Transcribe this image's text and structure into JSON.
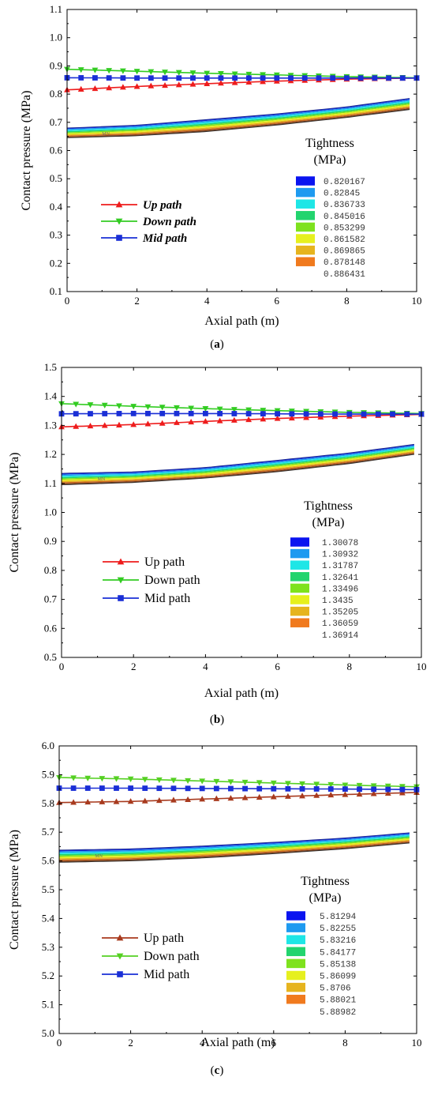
{
  "figure": {
    "panels": [
      {
        "caption_letter": "a",
        "chart_data": {
          "type": "line",
          "xlabel": "Axial path (m)",
          "ylabel": "Contact pressure (MPa)",
          "xlim": [
            0,
            10
          ],
          "ylim": [
            0.1,
            1.1
          ],
          "xticks": [
            0,
            2,
            4,
            6,
            8,
            10
          ],
          "yticks": [
            0.1,
            0.2,
            0.3,
            0.4,
            0.5,
            0.6,
            0.7,
            0.8,
            0.9,
            1.0,
            1.1
          ],
          "ytick_labels": [
            "0.1",
            "0.2",
            "0.3",
            "0.4",
            "0.5",
            "0.6",
            "0.7",
            "0.8",
            "0.9",
            "1.0",
            "1.1"
          ],
          "grid": false,
          "legend_style": "bold-italic",
          "legend_position": "middle-left",
          "series": [
            {
              "name": "Up path",
              "color": "#ee1c1c",
              "marker": "triangle-up",
              "x": [
                0,
                2,
                4,
                6,
                8,
                10
              ],
              "y": [
                0.815,
                0.827,
                0.837,
                0.846,
                0.853,
                0.857
              ]
            },
            {
              "name": "Down path",
              "color": "#33cc22",
              "marker": "triangle-down",
              "x": [
                0,
                2,
                4,
                6,
                8,
                10
              ],
              "y": [
                0.888,
                0.881,
                0.874,
                0.868,
                0.862,
                0.858
              ]
            },
            {
              "name": "Mid path",
              "color": "#1a2fd6",
              "marker": "square",
              "x": [
                0,
                2,
                4,
                6,
                8,
                10
              ],
              "y": [
                0.858,
                0.857,
                0.857,
                0.857,
                0.857,
                0.857
              ]
            }
          ],
          "band": {
            "x": [
              0,
              2,
              4,
              6,
              8,
              9.8
            ],
            "y_top": [
              0.68,
              0.69,
              0.71,
              0.73,
              0.755,
              0.785
            ],
            "y_bottom": [
              0.645,
              0.652,
              0.667,
              0.69,
              0.717,
              0.745
            ],
            "label": "MN"
          },
          "colorbar": {
            "title_line1": "Tightness",
            "title_line2": "(MPa)",
            "labels": [
              "0.820167",
              "0.82845",
              "0.836733",
              "0.845016",
              "0.853299",
              "0.861582",
              "0.869865",
              "0.878148",
              "0.886431"
            ]
          }
        }
      },
      {
        "caption_letter": "b",
        "chart_data": {
          "type": "line",
          "xlabel": "Axial path (m)",
          "ylabel": "Contact pressure (MPa)",
          "xlim": [
            0,
            10
          ],
          "ylim": [
            0.5,
            1.5
          ],
          "xticks": [
            0,
            2,
            4,
            6,
            8,
            10
          ],
          "yticks": [
            0.5,
            0.6,
            0.7,
            0.8,
            0.9,
            1.0,
            1.1,
            1.2,
            1.3,
            1.4,
            1.5
          ],
          "ytick_labels": [
            "0.5",
            "0.6",
            "0.7",
            "0.8",
            "0.9",
            "1.0",
            "1.1",
            "1.2",
            "1.3",
            "1.4",
            "1.5"
          ],
          "grid": false,
          "legend_style": "normal",
          "legend_position": "middle-left",
          "series": [
            {
              "name": "Up path",
              "color": "#ee1c1c",
              "marker": "triangle-up",
              "x": [
                0,
                2,
                4,
                6,
                8,
                10
              ],
              "y": [
                1.295,
                1.303,
                1.314,
                1.324,
                1.332,
                1.338
              ]
            },
            {
              "name": "Down path",
              "color": "#33cc22",
              "marker": "triangle-down",
              "x": [
                0,
                2,
                4,
                6,
                8,
                10
              ],
              "y": [
                1.375,
                1.366,
                1.358,
                1.351,
                1.345,
                1.341
              ]
            },
            {
              "name": "Mid path",
              "color": "#1a2fd6",
              "marker": "square",
              "x": [
                0,
                2,
                4,
                6,
                8,
                10
              ],
              "y": [
                1.34,
                1.341,
                1.341,
                1.34,
                1.339,
                1.339
              ]
            }
          ],
          "band": {
            "x": [
              0,
              2,
              4,
              6,
              8,
              9.8
            ],
            "y_top": [
              1.135,
              1.14,
              1.155,
              1.18,
              1.205,
              1.235
            ],
            "y_bottom": [
              1.095,
              1.103,
              1.118,
              1.14,
              1.168,
              1.2
            ],
            "label": "MN"
          },
          "colorbar": {
            "title_line1": "Tightness",
            "title_line2": "(MPa)",
            "labels": [
              "1.30078",
              "1.30932",
              "1.31787",
              "1.32641",
              "1.33496",
              "1.3435",
              "1.35205",
              "1.36059",
              "1.36914"
            ]
          }
        }
      },
      {
        "caption_letter": "c",
        "chart_data": {
          "type": "line",
          "xlabel": "Axial path (m)",
          "ylabel": "Contact pressure (MPa)",
          "xlim": [
            0,
            10
          ],
          "ylim": [
            5.0,
            6.0
          ],
          "xticks": [
            0,
            2,
            4,
            6,
            8,
            10
          ],
          "yticks": [
            5.0,
            5.1,
            5.2,
            5.3,
            5.4,
            5.5,
            5.6,
            5.7,
            5.8,
            5.9,
            6.0
          ],
          "ytick_labels": [
            "5.0",
            "5.1",
            "5.2",
            "5.3",
            "5.4",
            "5.5",
            "5.6",
            "5.7",
            "5.8",
            "5.9",
            "6.0"
          ],
          "grid": false,
          "legend_style": "normal",
          "legend_position": "bottom-left",
          "series": [
            {
              "name": "Up path",
              "color": "#a83a1e",
              "marker": "triangle-up",
              "x": [
                0,
                2,
                4,
                6,
                8,
                10
              ],
              "y": [
                5.803,
                5.807,
                5.815,
                5.823,
                5.831,
                5.838
              ]
            },
            {
              "name": "Down path",
              "color": "#55d022",
              "marker": "triangle-down",
              "x": [
                0,
                2,
                4,
                6,
                8,
                10
              ],
              "y": [
                5.89,
                5.885,
                5.878,
                5.871,
                5.864,
                5.858
              ]
            },
            {
              "name": "Mid path",
              "color": "#1a2fd6",
              "marker": "square",
              "x": [
                0,
                2,
                4,
                6,
                8,
                10
              ],
              "y": [
                5.853,
                5.853,
                5.852,
                5.851,
                5.85,
                5.848
              ]
            }
          ],
          "band": {
            "x": [
              0,
              2,
              4,
              6,
              8,
              9.8
            ],
            "y_top": [
              5.638,
              5.642,
              5.652,
              5.665,
              5.68,
              5.698
            ],
            "y_bottom": [
              5.595,
              5.6,
              5.61,
              5.625,
              5.642,
              5.662
            ],
            "label": "MN"
          },
          "colorbar": {
            "title_line1": "Tightness",
            "title_line2": "(MPa)",
            "labels": [
              "5.81294",
              "5.82255",
              "5.83216",
              "5.84177",
              "5.85138",
              "5.86099",
              "5.8706",
              "5.88021",
              "5.88982"
            ]
          }
        }
      }
    ],
    "colorbar_colors": [
      "#0a14f0",
      "#1e9af0",
      "#1ee6e6",
      "#22d46e",
      "#7ee21e",
      "#e6f01e",
      "#e6b41e",
      "#f07a1e",
      "#e6141e"
    ],
    "band_colors": [
      "#1a2fd6",
      "#1e9af0",
      "#1ee6e6",
      "#22d46e",
      "#7ee21e",
      "#e6f01e",
      "#e6b41e",
      "#c8641e",
      "#6a3a1e"
    ]
  }
}
